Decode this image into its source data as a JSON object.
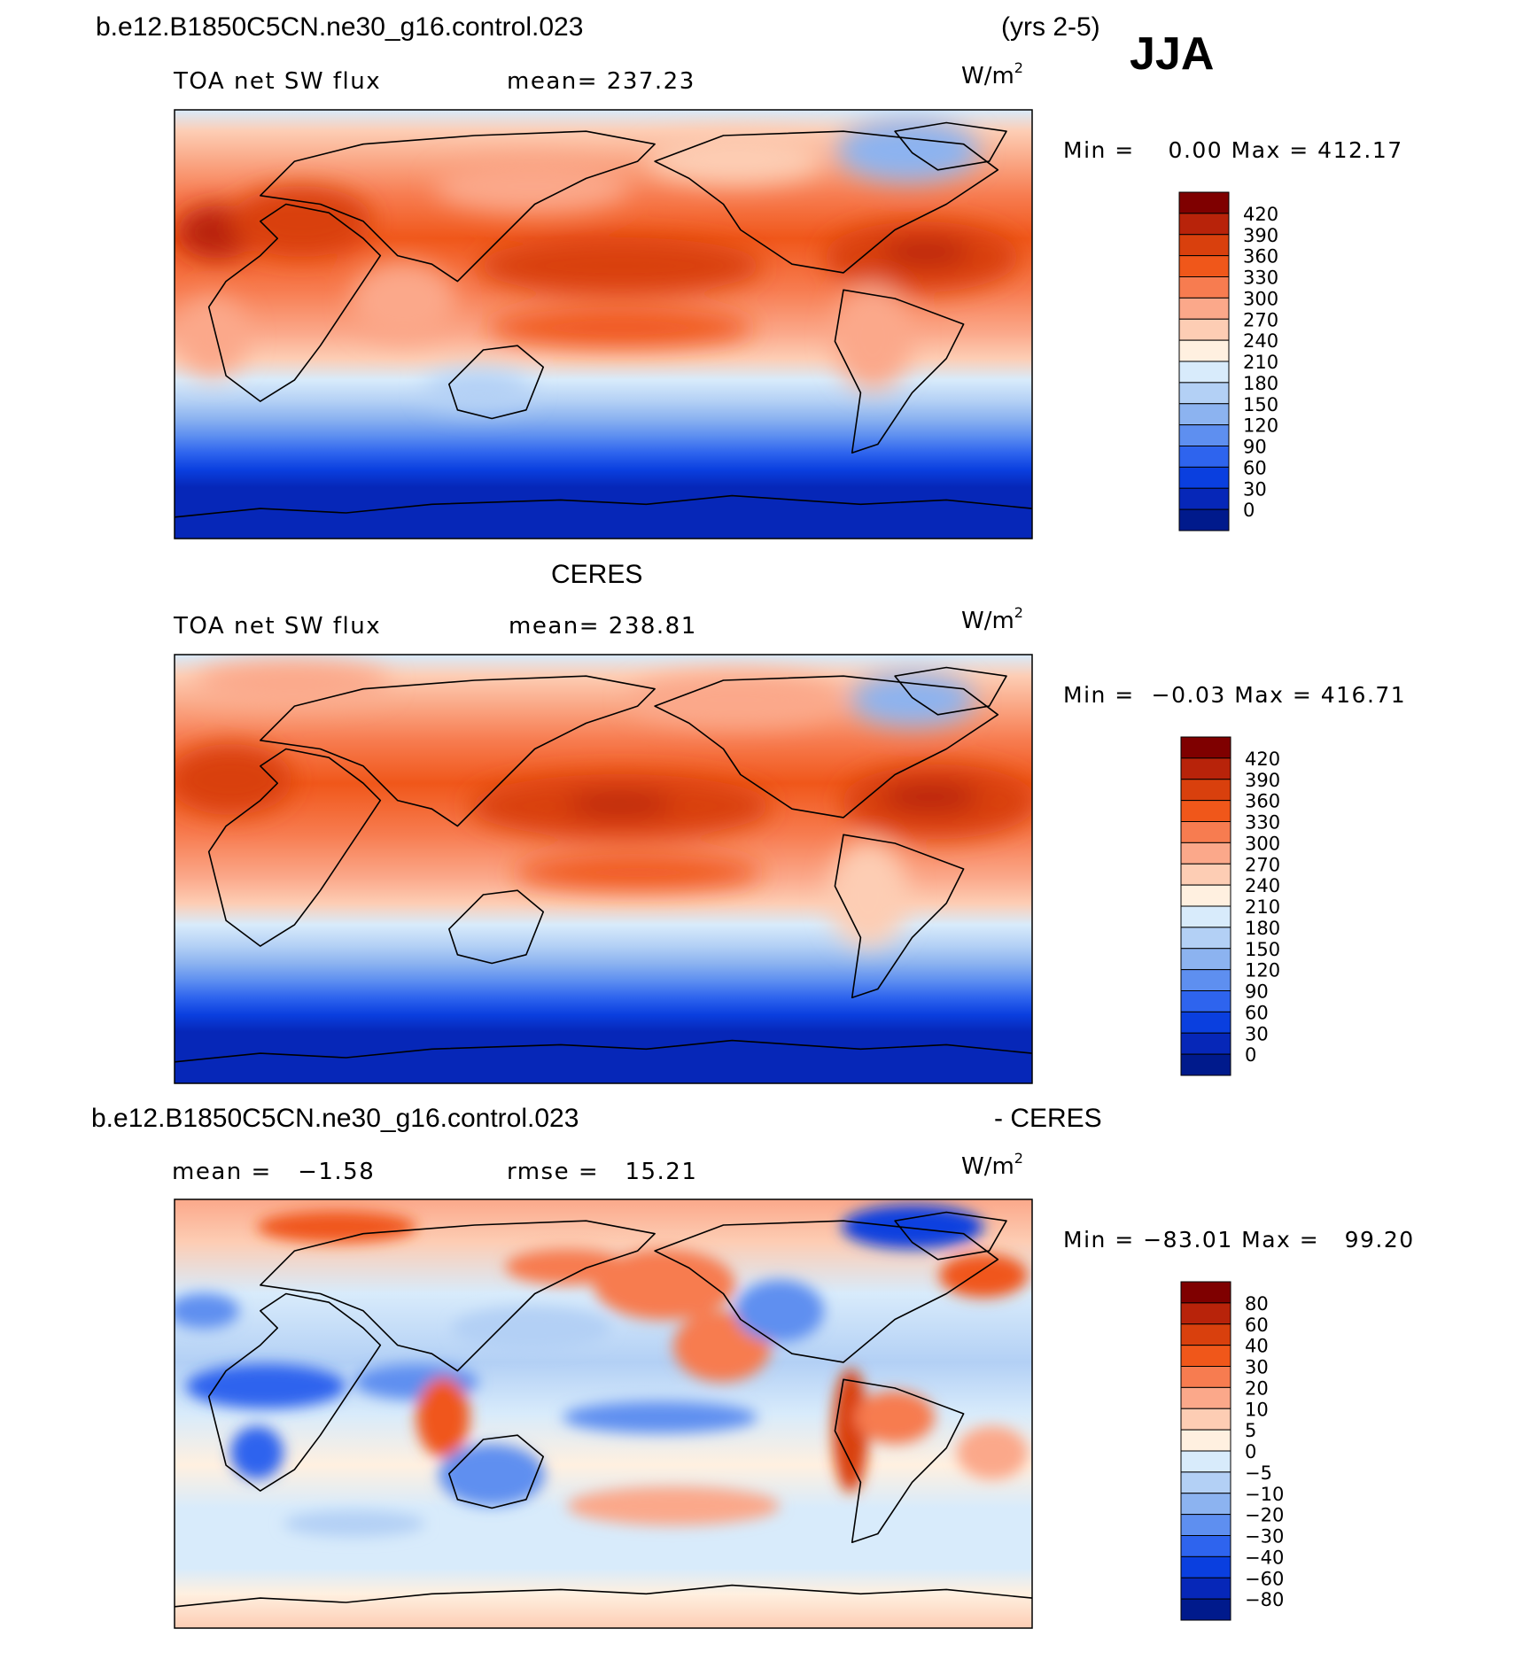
{
  "figure": {
    "case_name": "b.e12.B1850C5CN.ne30_g16.control.023",
    "years": "(yrs 2-5)",
    "season": "JJA",
    "obs_title": "CERES",
    "diff_suffix": "- CERES"
  },
  "chart_data": [
    {
      "type": "heatmap",
      "panel": "model",
      "variable": "TOA net SW flux",
      "mean_label": "mean= 237.23",
      "units": "W/m",
      "units_sup": "2",
      "min_max_label": "Min =    0.00 Max = 412.17",
      "min": 0.0,
      "max": 412.17,
      "mean": 237.23,
      "colorbar_levels": [
        "420",
        "390",
        "360",
        "330",
        "300",
        "270",
        "240",
        "210",
        "180",
        "150",
        "120",
        "90",
        "60",
        "30",
        "0"
      ],
      "colorbar_colors": [
        "#7f0000",
        "#b8230a",
        "#d9400d",
        "#f0571a",
        "#f77c50",
        "#fba88a",
        "#fdcdb4",
        "#fff0e0",
        "#d8ebfb",
        "#b3d0f5",
        "#8cb3f0",
        "#5e8ff0",
        "#2e64ee",
        "#0a3fdf",
        "#0627b8",
        "#001a8c"
      ]
    },
    {
      "type": "heatmap",
      "panel": "obs",
      "variable": "TOA net SW flux",
      "mean_label": "mean= 238.81",
      "units": "W/m",
      "units_sup": "2",
      "min_max_label": "Min =  −0.03 Max = 416.71",
      "min": -0.03,
      "max": 416.71,
      "mean": 238.81,
      "colorbar_levels": [
        "420",
        "390",
        "360",
        "330",
        "300",
        "270",
        "240",
        "210",
        "180",
        "150",
        "120",
        "90",
        "60",
        "30",
        "0"
      ],
      "colorbar_colors": [
        "#7f0000",
        "#b8230a",
        "#d9400d",
        "#f0571a",
        "#f77c50",
        "#fba88a",
        "#fdcdb4",
        "#fff0e0",
        "#d8ebfb",
        "#b3d0f5",
        "#8cb3f0",
        "#5e8ff0",
        "#2e64ee",
        "#0a3fdf",
        "#0627b8",
        "#001a8c"
      ]
    },
    {
      "type": "heatmap",
      "panel": "diff",
      "mean_label": "mean =   −1.58",
      "rmse_label": "rmse =   15.21",
      "units": "W/m",
      "units_sup": "2",
      "min_max_label": "Min = −83.01 Max =   99.20",
      "min": -83.01,
      "max": 99.2,
      "mean": -1.58,
      "rmse": 15.21,
      "colorbar_levels": [
        "80",
        "60",
        "40",
        "30",
        "20",
        "10",
        "5",
        "0",
        "−5",
        "−10",
        "−20",
        "−30",
        "−40",
        "−60",
        "−80"
      ],
      "colorbar_colors": [
        "#7f0000",
        "#b8230a",
        "#d9400d",
        "#f0571a",
        "#f77c50",
        "#fba88a",
        "#fdcdb4",
        "#fff0e0",
        "#d8ebfb",
        "#b3d0f5",
        "#8cb3f0",
        "#5e8ff0",
        "#2e64ee",
        "#0a3fdf",
        "#0627b8",
        "#001a8c"
      ]
    }
  ]
}
